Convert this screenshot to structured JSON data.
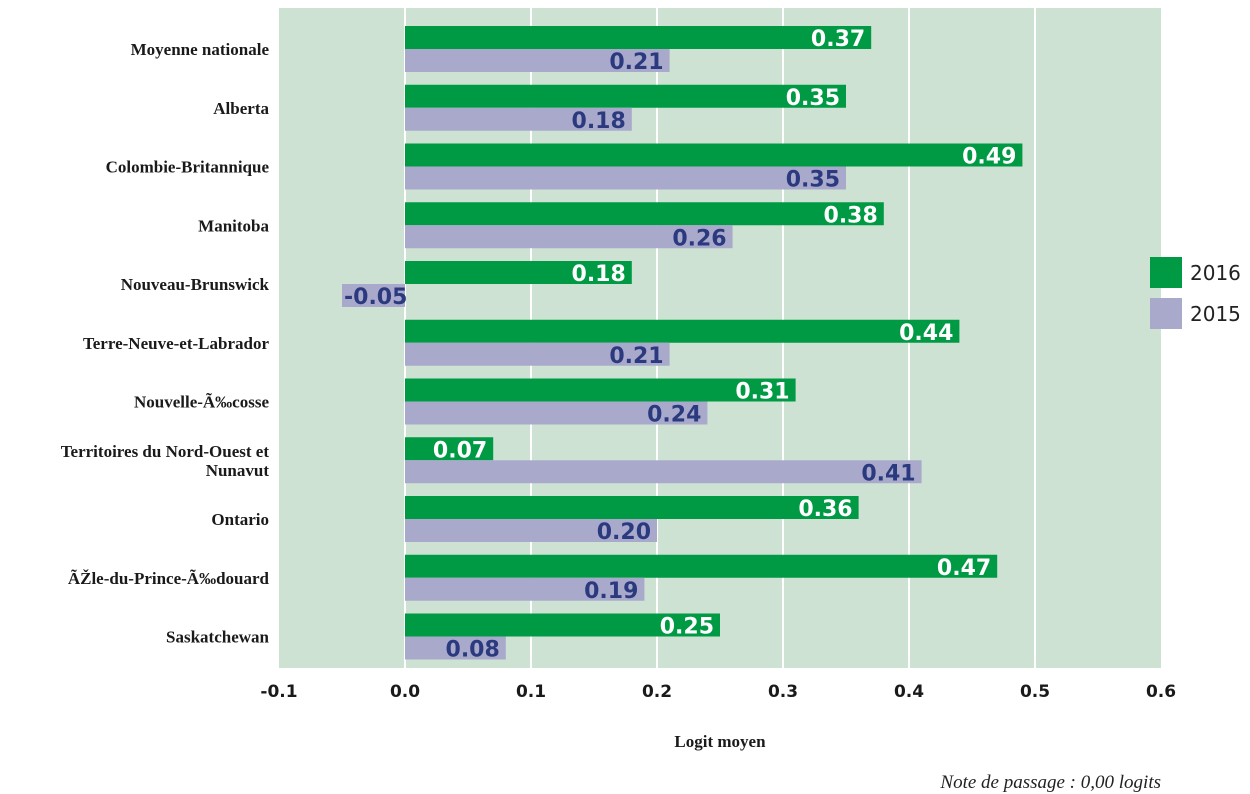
{
  "chart_data": {
    "type": "bar",
    "orientation": "horizontal",
    "categories": [
      [
        "Moyenne nationale"
      ],
      [
        "Alberta"
      ],
      [
        "Colombie-Britannique"
      ],
      [
        "Manitoba"
      ],
      [
        "Nouveau-Brunswick"
      ],
      [
        "Terre-Neuve-et-Labrador"
      ],
      [
        "Nouvelle-Ã‰cosse"
      ],
      [
        "Territoires du Nord-Ouest et",
        "Nunavut"
      ],
      [
        "Ontario"
      ],
      [
        "ÃŽle-du-Prince-Ã‰douard"
      ],
      [
        "Saskatchewan"
      ]
    ],
    "series": [
      {
        "name": "2016",
        "color": "#009a44",
        "label_color": "#ffffff",
        "values": [
          0.37,
          0.35,
          0.49,
          0.38,
          0.18,
          0.44,
          0.31,
          0.07,
          0.36,
          0.47,
          0.25
        ],
        "labels": [
          "0.37",
          "0.35",
          "0.49",
          "0.38",
          "0.18",
          "0.44",
          "0.31",
          "0.07",
          "0.36",
          "0.47",
          "0.25"
        ]
      },
      {
        "name": "2015",
        "color": "#a9a9cc",
        "label_color": "#2b3a7e",
        "values": [
          0.21,
          0.18,
          0.35,
          0.26,
          -0.05,
          0.21,
          0.24,
          0.41,
          0.2,
          0.19,
          0.08
        ],
        "labels": [
          "0.21",
          "0.18",
          "0.35",
          "0.26",
          "-0.05",
          "0.21",
          "0.24",
          "0.41",
          "0.20",
          "0.19",
          "0.08"
        ]
      }
    ],
    "xlim": [
      -0.1,
      0.6
    ],
    "xticks": [
      "-0.1",
      "0.0",
      "0.1",
      "0.2",
      "0.3",
      "0.4",
      "0.5",
      "0.6"
    ],
    "xlabel": "Logit moyen",
    "note": "Note de passage : 0,00 logits",
    "grid": true,
    "legend_position": "right",
    "plot_background": "#cde2d2"
  }
}
